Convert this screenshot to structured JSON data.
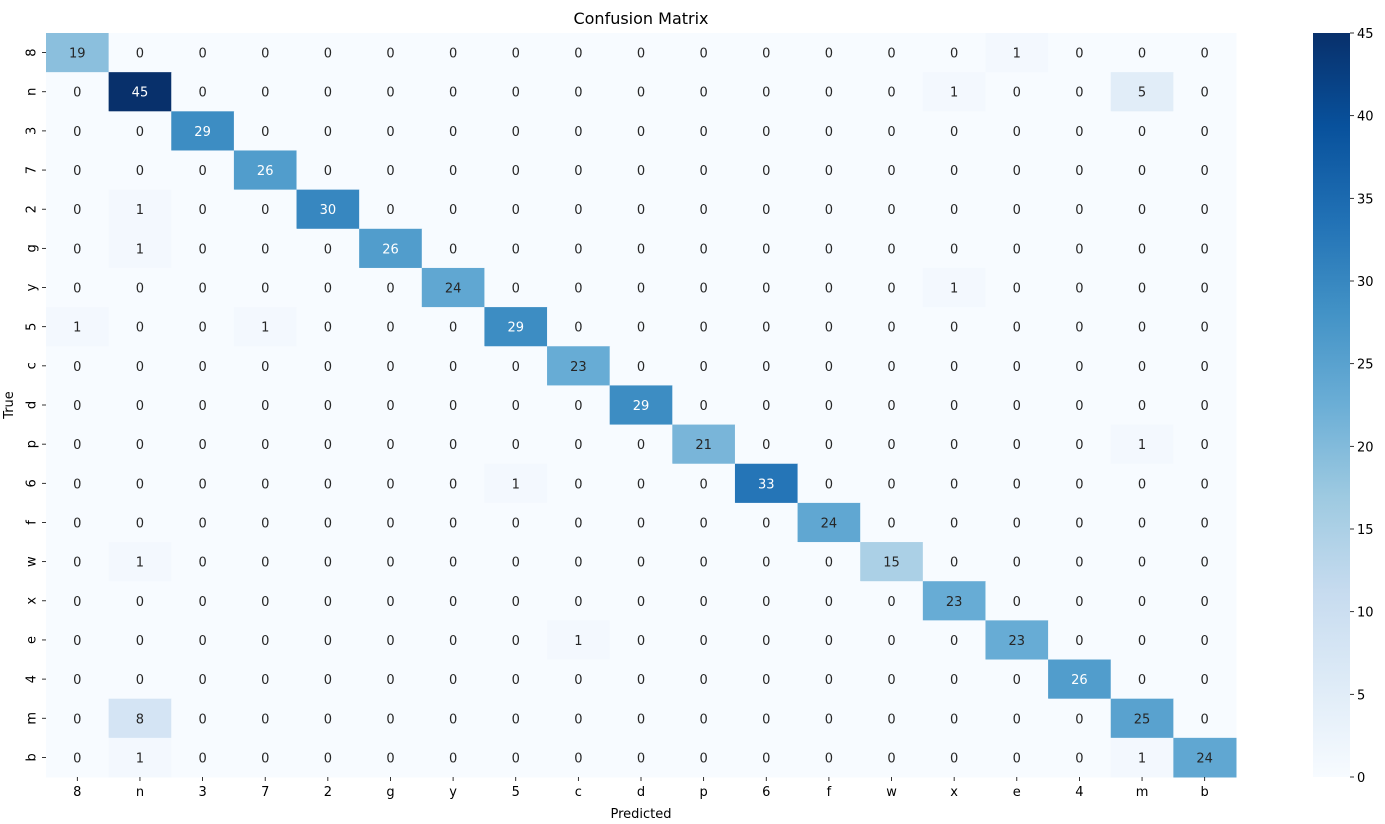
{
  "chart_data": {
    "type": "heatmap",
    "title": "Confusion Matrix",
    "xlabel": "Predicted",
    "ylabel": "True",
    "x_categories": [
      "8",
      "n",
      "3",
      "7",
      "2",
      "g",
      "y",
      "5",
      "c",
      "d",
      "p",
      "6",
      "f",
      "w",
      "x",
      "e",
      "4",
      "m",
      "b"
    ],
    "y_categories": [
      "8",
      "n",
      "3",
      "7",
      "2",
      "g",
      "y",
      "5",
      "c",
      "d",
      "p",
      "6",
      "f",
      "w",
      "x",
      "e",
      "4",
      "m",
      "b"
    ],
    "values": [
      [
        19,
        0,
        0,
        0,
        0,
        0,
        0,
        0,
        0,
        0,
        0,
        0,
        0,
        0,
        0,
        1,
        0,
        0,
        0
      ],
      [
        0,
        45,
        0,
        0,
        0,
        0,
        0,
        0,
        0,
        0,
        0,
        0,
        0,
        0,
        1,
        0,
        0,
        5,
        0
      ],
      [
        0,
        0,
        29,
        0,
        0,
        0,
        0,
        0,
        0,
        0,
        0,
        0,
        0,
        0,
        0,
        0,
        0,
        0,
        0
      ],
      [
        0,
        0,
        0,
        26,
        0,
        0,
        0,
        0,
        0,
        0,
        0,
        0,
        0,
        0,
        0,
        0,
        0,
        0,
        0
      ],
      [
        0,
        1,
        0,
        0,
        30,
        0,
        0,
        0,
        0,
        0,
        0,
        0,
        0,
        0,
        0,
        0,
        0,
        0,
        0
      ],
      [
        0,
        1,
        0,
        0,
        0,
        26,
        0,
        0,
        0,
        0,
        0,
        0,
        0,
        0,
        0,
        0,
        0,
        0,
        0
      ],
      [
        0,
        0,
        0,
        0,
        0,
        0,
        24,
        0,
        0,
        0,
        0,
        0,
        0,
        0,
        1,
        0,
        0,
        0,
        0
      ],
      [
        1,
        0,
        0,
        1,
        0,
        0,
        0,
        29,
        0,
        0,
        0,
        0,
        0,
        0,
        0,
        0,
        0,
        0,
        0
      ],
      [
        0,
        0,
        0,
        0,
        0,
        0,
        0,
        0,
        23,
        0,
        0,
        0,
        0,
        0,
        0,
        0,
        0,
        0,
        0
      ],
      [
        0,
        0,
        0,
        0,
        0,
        0,
        0,
        0,
        0,
        29,
        0,
        0,
        0,
        0,
        0,
        0,
        0,
        0,
        0
      ],
      [
        0,
        0,
        0,
        0,
        0,
        0,
        0,
        0,
        0,
        0,
        21,
        0,
        0,
        0,
        0,
        0,
        0,
        1,
        0
      ],
      [
        0,
        0,
        0,
        0,
        0,
        0,
        0,
        1,
        0,
        0,
        0,
        33,
        0,
        0,
        0,
        0,
        0,
        0,
        0
      ],
      [
        0,
        0,
        0,
        0,
        0,
        0,
        0,
        0,
        0,
        0,
        0,
        0,
        24,
        0,
        0,
        0,
        0,
        0,
        0
      ],
      [
        0,
        1,
        0,
        0,
        0,
        0,
        0,
        0,
        0,
        0,
        0,
        0,
        0,
        15,
        0,
        0,
        0,
        0,
        0
      ],
      [
        0,
        0,
        0,
        0,
        0,
        0,
        0,
        0,
        0,
        0,
        0,
        0,
        0,
        0,
        23,
        0,
        0,
        0,
        0
      ],
      [
        0,
        0,
        0,
        0,
        0,
        0,
        0,
        0,
        1,
        0,
        0,
        0,
        0,
        0,
        0,
        23,
        0,
        0,
        0
      ],
      [
        0,
        0,
        0,
        0,
        0,
        0,
        0,
        0,
        0,
        0,
        0,
        0,
        0,
        0,
        0,
        0,
        26,
        0,
        0
      ],
      [
        0,
        8,
        0,
        0,
        0,
        0,
        0,
        0,
        0,
        0,
        0,
        0,
        0,
        0,
        0,
        0,
        0,
        25,
        0
      ],
      [
        0,
        1,
        0,
        0,
        0,
        0,
        0,
        0,
        0,
        0,
        0,
        0,
        0,
        0,
        0,
        0,
        0,
        1,
        24
      ]
    ],
    "colorbar": {
      "colormap": "Blues",
      "min": 0,
      "max": 45,
      "ticks": [
        0,
        5,
        10,
        15,
        20,
        25,
        30,
        35,
        40,
        45
      ]
    },
    "grid": false,
    "annotations": "cell counts shown in each cell"
  }
}
